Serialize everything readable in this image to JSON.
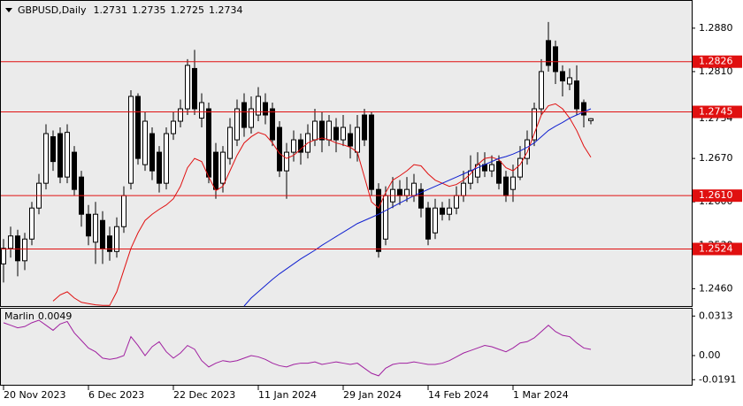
{
  "chart_data": [
    {
      "type": "candlestick",
      "title": "GBPUSD,Daily",
      "categories": [
        "20 Nov 2023",
        null,
        null,
        null,
        null,
        null,
        null,
        null,
        null,
        null,
        null,
        null,
        "6 Dec 2023",
        null,
        null,
        null,
        null,
        null,
        null,
        null,
        null,
        null,
        null,
        null,
        "22 Dec 2023",
        null,
        null,
        null,
        null,
        null,
        null,
        null,
        null,
        null,
        null,
        null,
        "11 Jan 2024",
        null,
        null,
        null,
        null,
        null,
        null,
        null,
        null,
        null,
        null,
        null,
        "29 Jan 2024",
        null,
        null,
        null,
        null,
        null,
        null,
        null,
        null,
        null,
        null,
        null,
        "14 Feb 2024",
        null,
        null,
        null,
        null,
        null,
        null,
        null,
        null,
        null,
        null,
        null,
        "1 Mar 2024",
        null,
        null,
        null,
        null,
        null,
        null,
        null,
        null,
        null,
        null,
        null
      ],
      "open": [
        1.25,
        1.2525,
        1.2545,
        1.2505,
        1.254,
        1.259,
        1.263,
        1.2705,
        1.271,
        1.264,
        1.268,
        1.264,
        1.258,
        1.2535,
        1.257,
        1.2545,
        1.252,
        1.256,
        1.263,
        1.277,
        1.266,
        1.271,
        1.268,
        1.263,
        1.271,
        1.273,
        1.275,
        1.2815,
        1.2735,
        1.275,
        1.268,
        1.263,
        1.267,
        1.27,
        1.276,
        1.272,
        1.274,
        1.276,
        1.275,
        1.272,
        1.265,
        1.268,
        1.27,
        1.268,
        1.27,
        1.273,
        1.27,
        1.272,
        1.27,
        1.271,
        1.268,
        1.274,
        1.274,
        1.262,
        1.254,
        1.26,
        1.262,
        1.261,
        1.261,
        1.262,
        1.259,
        1.255,
        1.259,
        1.258,
        1.259,
        1.261,
        1.263,
        1.264,
        1.266,
        1.265,
        1.2665,
        1.264,
        1.262,
        1.264,
        1.267,
        1.27,
        1.275,
        1.286,
        1.285,
        1.281,
        1.279,
        1.2795,
        1.276,
        1.2731
      ],
      "high": [
        1.254,
        1.256,
        1.2555,
        1.255,
        1.26,
        1.2645,
        1.2725,
        1.2715,
        1.272,
        1.2725,
        1.269,
        1.265,
        1.2595,
        1.26,
        1.2585,
        1.256,
        1.2575,
        1.2625,
        1.278,
        1.2775,
        1.2745,
        1.272,
        1.269,
        1.272,
        1.2745,
        1.2765,
        1.283,
        1.2845,
        1.2775,
        1.276,
        1.2695,
        1.269,
        1.2735,
        1.2765,
        1.2775,
        1.277,
        1.2785,
        1.2775,
        1.276,
        1.273,
        1.2695,
        1.2715,
        1.271,
        1.2725,
        1.275,
        1.2745,
        1.274,
        1.2735,
        1.274,
        1.2725,
        1.274,
        1.275,
        1.2745,
        1.263,
        1.2625,
        1.264,
        1.2635,
        1.264,
        1.2645,
        1.263,
        1.26,
        1.2605,
        1.26,
        1.2605,
        1.2625,
        1.265,
        1.2675,
        1.268,
        1.268,
        1.2675,
        1.2675,
        1.265,
        1.266,
        1.269,
        1.2715,
        1.276,
        1.283,
        1.289,
        1.286,
        1.282,
        1.2815,
        1.282,
        1.2765,
        1.2735
      ],
      "low": [
        1.247,
        1.251,
        1.248,
        1.249,
        1.253,
        1.258,
        1.262,
        1.265,
        1.263,
        1.263,
        1.261,
        1.256,
        1.253,
        1.25,
        1.25,
        1.2505,
        1.251,
        1.255,
        1.262,
        1.266,
        1.265,
        1.2635,
        1.2615,
        1.262,
        1.27,
        1.272,
        1.274,
        1.274,
        1.272,
        1.263,
        1.2605,
        1.2615,
        1.266,
        1.269,
        1.2705,
        1.271,
        1.273,
        1.2725,
        1.269,
        1.264,
        1.2605,
        1.2665,
        1.266,
        1.267,
        1.269,
        1.268,
        1.269,
        1.268,
        1.269,
        1.267,
        1.2665,
        1.269,
        1.261,
        1.251,
        1.253,
        1.259,
        1.2595,
        1.26,
        1.26,
        1.2575,
        1.253,
        1.254,
        1.257,
        1.257,
        1.258,
        1.26,
        1.262,
        1.263,
        1.264,
        1.264,
        1.262,
        1.26,
        1.26,
        1.2635,
        1.266,
        1.269,
        1.274,
        1.281,
        1.279,
        1.277,
        1.278,
        1.274,
        1.272,
        1.2725
      ],
      "close": [
        1.2525,
        1.2545,
        1.2505,
        1.254,
        1.259,
        1.263,
        1.271,
        1.2665,
        1.264,
        1.2712,
        1.262,
        1.258,
        1.2545,
        1.258,
        1.2525,
        1.252,
        1.256,
        1.261,
        1.277,
        1.267,
        1.273,
        1.265,
        1.263,
        1.271,
        1.273,
        1.275,
        1.282,
        1.275,
        1.276,
        1.264,
        1.262,
        1.268,
        1.272,
        1.275,
        1.272,
        1.275,
        1.277,
        1.274,
        1.27,
        1.265,
        1.268,
        1.27,
        1.268,
        1.271,
        1.273,
        1.27,
        1.273,
        1.27,
        1.272,
        1.269,
        1.272,
        1.27,
        1.262,
        1.252,
        1.261,
        1.262,
        1.261,
        1.262,
        1.263,
        1.259,
        1.254,
        1.259,
        1.258,
        1.259,
        1.261,
        1.263,
        1.265,
        1.266,
        1.265,
        1.266,
        1.263,
        1.261,
        1.264,
        1.267,
        1.27,
        1.275,
        1.281,
        1.282,
        1.281,
        1.2795,
        1.28,
        1.275,
        1.274,
        1.2734
      ],
      "up_color": "#ffffff",
      "down_color": "#000000",
      "series": [
        {
          "color": "#e01010",
          "values": [
            null,
            null,
            null,
            null,
            null,
            null,
            null,
            1.244,
            1.245,
            1.2455,
            1.2445,
            1.2438,
            1.2436,
            1.2434,
            1.2433,
            1.2433,
            1.2455,
            1.249,
            1.2525,
            1.255,
            1.257,
            1.258,
            1.2588,
            1.2595,
            1.2605,
            1.2625,
            1.2655,
            1.267,
            1.2665,
            1.264,
            1.2618,
            1.2625,
            1.265,
            1.2675,
            1.2695,
            1.2705,
            1.2712,
            1.2708,
            1.2695,
            1.2678,
            1.267,
            1.2675,
            1.2685,
            1.2695,
            1.27,
            1.2703,
            1.27,
            1.2695,
            1.2692,
            1.2688,
            1.268,
            1.264,
            1.26,
            1.259,
            1.2615,
            1.2635,
            1.2642,
            1.265,
            1.266,
            1.2658,
            1.2645,
            1.2635,
            1.263,
            1.2625,
            1.2628,
            1.2635,
            1.2645,
            1.266,
            1.267,
            1.2672,
            1.2668,
            1.2655,
            1.265,
            1.266,
            1.268,
            1.271,
            1.274,
            1.2755,
            1.2758,
            1.275,
            1.2735,
            1.2715,
            1.269,
            1.2672
          ]
        },
        {
          "color": "#1020d0",
          "values": [
            null,
            null,
            null,
            null,
            null,
            null,
            null,
            null,
            null,
            null,
            null,
            null,
            null,
            null,
            null,
            null,
            null,
            null,
            null,
            null,
            null,
            null,
            null,
            null,
            null,
            null,
            null,
            null,
            null,
            null,
            null,
            null,
            null,
            null,
            1.2432,
            1.2445,
            1.2455,
            1.2465,
            1.2475,
            1.2484,
            1.2492,
            1.25,
            1.2508,
            1.2515,
            1.2522,
            1.253,
            1.2537,
            1.2544,
            1.2551,
            1.2558,
            1.2565,
            1.257,
            1.2575,
            1.258,
            1.2586,
            1.2592,
            1.2598,
            1.2604,
            1.261,
            1.2615,
            1.262,
            1.2625,
            1.263,
            1.2635,
            1.264,
            1.2645,
            1.265,
            1.2655,
            1.266,
            1.2665,
            1.267,
            1.2673,
            1.2677,
            1.2682,
            1.2688,
            1.2695,
            1.2705,
            1.2715,
            1.2722,
            1.2728,
            1.2735,
            1.274,
            1.2745,
            1.275
          ]
        }
      ],
      "hlines": [
        1.2826,
        1.2745,
        {
          "value": 1.261,
          "label": "1.2610"
        },
        1.2524
      ],
      "hline_color": "#e01010",
      "ylim": [
        1.2432,
        1.2924
      ],
      "yticks": [
        {
          "value": 1.288,
          "label": "1.2880"
        },
        {
          "value": 1.281,
          "label": "1.2810"
        },
        {
          "value": 1.274,
          "label": "1.2740"
        },
        {
          "value": 1.267,
          "label": "1.2670"
        },
        {
          "value": 1.26,
          "label": "1.2600"
        },
        {
          "value": 1.253,
          "label": "1.2530"
        },
        {
          "value": 1.246,
          "label": "1.2460"
        }
      ]
    },
    {
      "type": "line",
      "series": [
        {
          "name": "Marlin",
          "color": "#a020a0",
          "values": [
            0.026,
            0.024,
            0.022,
            0.023,
            0.026,
            0.028,
            0.024,
            0.02,
            0.025,
            0.027,
            0.018,
            0.012,
            0.006,
            0.003,
            -0.002,
            -0.003,
            -0.002,
            0.0,
            0.015,
            0.008,
            0.0,
            0.007,
            0.011,
            0.003,
            -0.002,
            0.002,
            0.008,
            0.005,
            -0.004,
            -0.009,
            -0.006,
            -0.004,
            -0.005,
            -0.004,
            -0.002,
            0.0,
            -0.001,
            -0.003,
            -0.006,
            -0.008,
            -0.009,
            -0.007,
            -0.006,
            -0.006,
            -0.005,
            -0.007,
            -0.006,
            -0.005,
            -0.006,
            -0.007,
            -0.006,
            -0.01,
            -0.014,
            -0.016,
            -0.01,
            -0.007,
            -0.006,
            -0.006,
            -0.005,
            -0.006,
            -0.007,
            -0.007,
            -0.006,
            -0.004,
            -0.001,
            0.002,
            0.004,
            0.006,
            0.008,
            0.007,
            0.005,
            0.003,
            0.006,
            0.01,
            0.011,
            0.014,
            0.019,
            0.024,
            0.019,
            0.016,
            0.015,
            0.01,
            0.006,
            0.0049
          ]
        }
      ],
      "ylim": [
        -0.0238,
        0.0371
      ],
      "yticks": [
        0.0313,
        {
          "value": 0,
          "label": "0.00"
        },
        -0.0191
      ]
    }
  ]
}
